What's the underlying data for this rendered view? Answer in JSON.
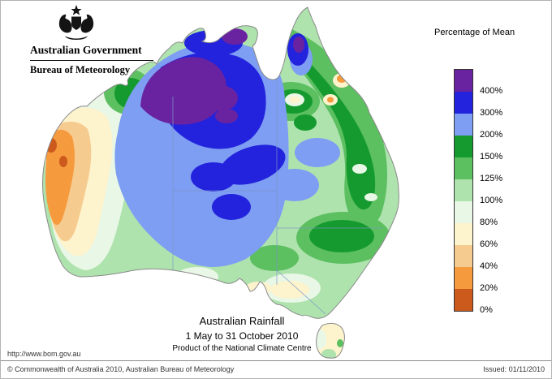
{
  "header": {
    "government": "Australian Government",
    "bureau": "Bureau of Meteorology"
  },
  "legend": {
    "title": "Percentage of Mean",
    "entries": [
      {
        "label": "400%",
        "color": "#6a23a0"
      },
      {
        "label": "300%",
        "color": "#2323dd"
      },
      {
        "label": "200%",
        "color": "#7d9ef2"
      },
      {
        "label": "150%",
        "color": "#159a30"
      },
      {
        "label": "125%",
        "color": "#5cbf60"
      },
      {
        "label": "100%",
        "color": "#aee3ae"
      },
      {
        "label": "80%",
        "color": "#e9f7e6"
      },
      {
        "label": "60%",
        "color": "#fdf3cd"
      },
      {
        "label": "40%",
        "color": "#f6cb90"
      },
      {
        "label": "20%",
        "color": "#f59a3d"
      },
      {
        "label": "0%",
        "color": "#cc5a1d"
      }
    ]
  },
  "map": {
    "title": "Australian Rainfall",
    "period": "1 May to 31 October 2010",
    "product": "Product of the National Climate Centre"
  },
  "footer": {
    "url": "http://www.bom.gov.au",
    "copyright": "© Commonwealth of Australia 2010, Australian Bureau of Meteorology",
    "issued": "Issued: 01/11/2010"
  }
}
